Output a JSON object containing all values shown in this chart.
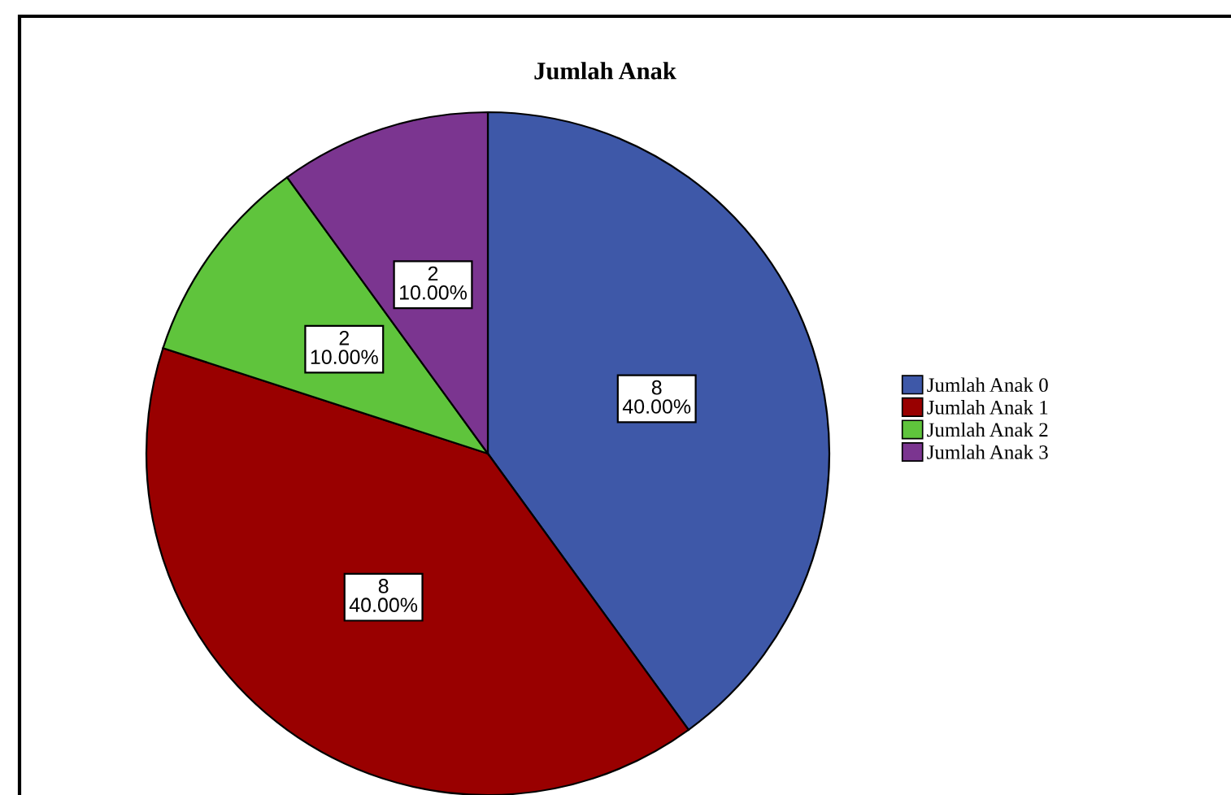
{
  "chart_data": {
    "type": "pie",
    "title": "Jumlah Anak",
    "categories": [
      "Jumlah Anak 0",
      "Jumlah Anak 1",
      "Jumlah Anak 2",
      "Jumlah Anak 3"
    ],
    "values": [
      8,
      8,
      2,
      2
    ],
    "value_labels": [
      "8\n40.00%",
      "8\n40.00%",
      "2\n10.00%",
      "2\n10.00%"
    ],
    "colors": [
      "#3e58a8",
      "#990000",
      "#5fc43c",
      "#7b3590"
    ],
    "legend": "right"
  }
}
